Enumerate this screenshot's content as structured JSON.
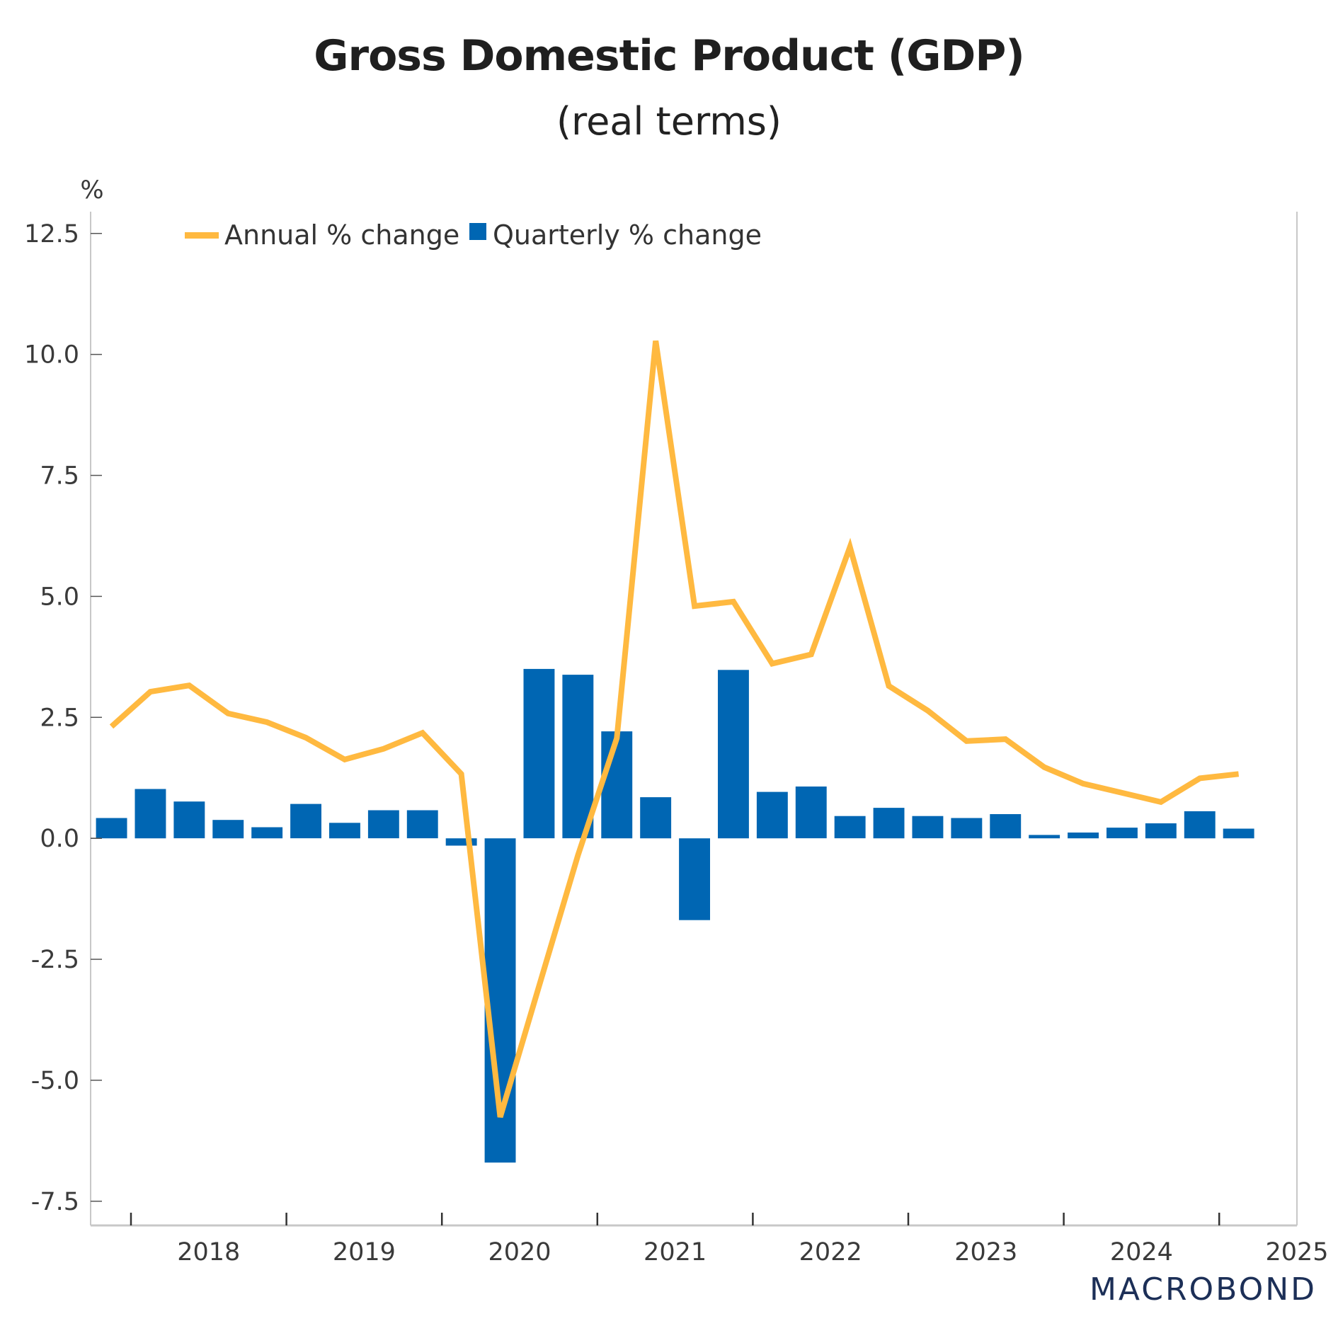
{
  "header": {
    "title": "Gross Domestic Product (GDP)",
    "subtitle": "(real terms)"
  },
  "branding": {
    "logo_text": "MACROBOND"
  },
  "chart_data": {
    "type": "bar",
    "title": "Gross Domestic Product (GDP)",
    "subtitle": "(real terms)",
    "xlabel": "",
    "ylabel": "%",
    "ylim": [
      -8.0,
      12.95
    ],
    "yticks": [
      12.5,
      10.0,
      7.5,
      5.0,
      2.5,
      0.0,
      -2.5,
      -5.0,
      -7.5
    ],
    "ytick_labels": [
      "12.5",
      "10.0",
      "7.5",
      "5.0",
      "2.5",
      "0.0",
      "-2.5",
      "-5.0",
      "-7.5"
    ],
    "xtick_labels": [
      "2018",
      "2019",
      "2020",
      "2021",
      "2022",
      "2023",
      "2024",
      "2025"
    ],
    "grid": false,
    "legend_position": "top-left",
    "colors": {
      "annual": "#FFB940",
      "quarterly": "#0066B3",
      "axis": "#c8c8c8",
      "tick": "#333333"
    },
    "categories": [
      "2017Q4",
      "2018Q1",
      "2018Q2",
      "2018Q3",
      "2018Q4",
      "2019Q1",
      "2019Q2",
      "2019Q3",
      "2019Q4",
      "2020Q1",
      "2020Q2",
      "2020Q3",
      "2020Q4",
      "2021Q1",
      "2021Q2",
      "2021Q3",
      "2021Q4",
      "2022Q1",
      "2022Q2",
      "2022Q3",
      "2022Q4",
      "2023Q1",
      "2023Q2",
      "2023Q3",
      "2023Q4",
      "2024Q1",
      "2024Q2",
      "2024Q3",
      "2024Q4",
      "2025Q1"
    ],
    "series": [
      {
        "name": "Annual % change",
        "type": "line",
        "values": [
          2.31,
          3.03,
          3.16,
          2.58,
          2.4,
          2.08,
          1.63,
          1.85,
          2.18,
          1.33,
          -5.76,
          -3.05,
          -0.35,
          2.07,
          10.28,
          4.8,
          4.89,
          3.61,
          3.8,
          6.02,
          3.15,
          2.64,
          2.01,
          2.05,
          1.47,
          1.13,
          0.94,
          0.75,
          1.24,
          1.33
        ]
      },
      {
        "name": "Quarterly % change",
        "type": "bar",
        "values": [
          0.42,
          1.02,
          0.76,
          0.38,
          0.23,
          0.71,
          0.32,
          0.58,
          0.58,
          -0.15,
          -6.7,
          3.5,
          3.38,
          2.21,
          0.85,
          -1.69,
          3.48,
          0.96,
          1.07,
          0.46,
          0.63,
          0.46,
          0.42,
          0.5,
          0.07,
          0.12,
          0.22,
          0.31,
          0.56,
          0.2
        ]
      }
    ]
  }
}
